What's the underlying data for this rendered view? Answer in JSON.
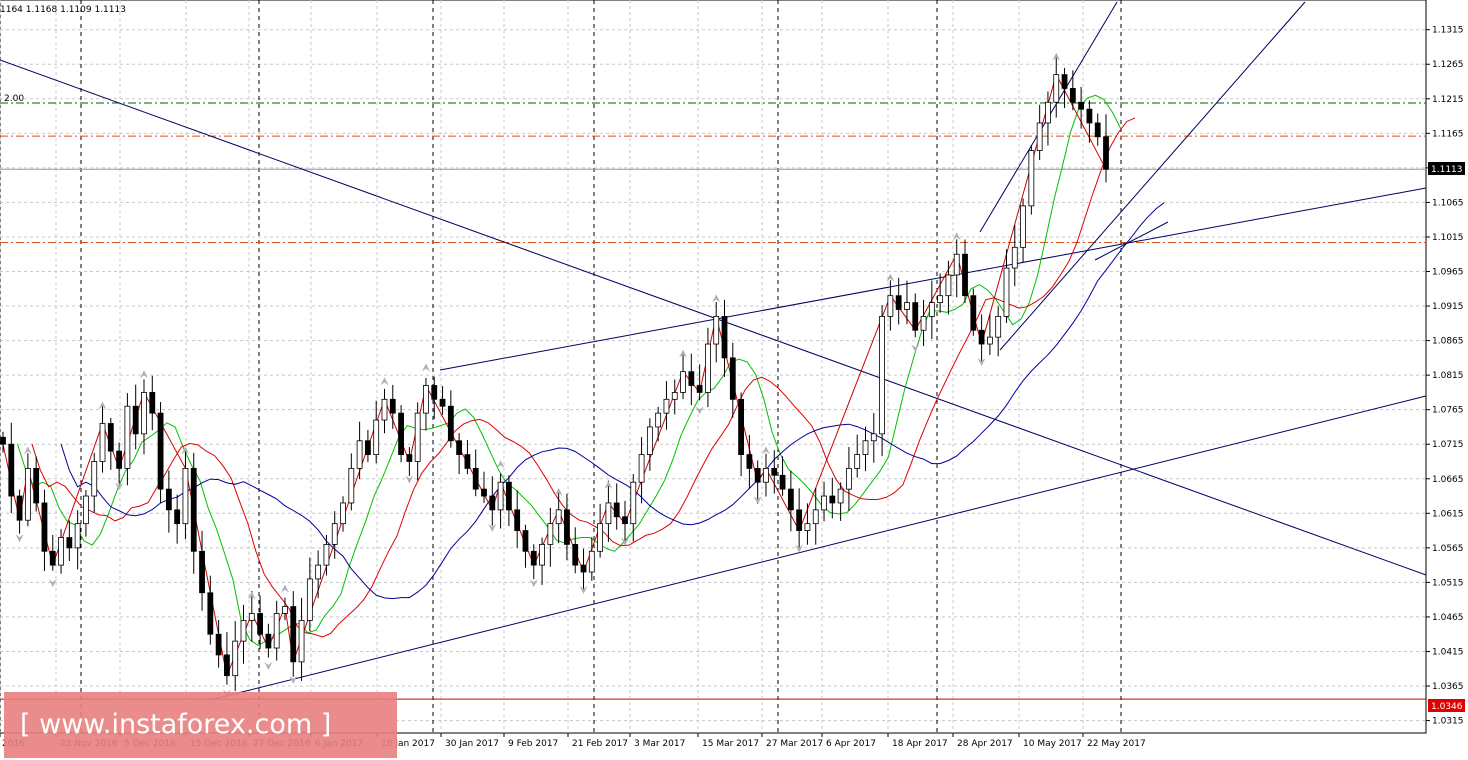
{
  "header": {
    "ohlc_text": "1164 1.1168 1.1109 1.1113",
    "level_label": "2.00"
  },
  "watermark": {
    "text": "[ www.instaforex.com ]"
  },
  "colors": {
    "candle_up": "#ffffff",
    "candle_down": "#000000",
    "ma_fast": "#00c000",
    "ma_mid": "#e00000",
    "ma_slow": "#000099",
    "zigzag": "#cc0000",
    "trendline": "#000060",
    "level_orange": "#e05010",
    "level_green": "#006000",
    "support_line": "#cc0000",
    "watermark_bg": "#e98080"
  },
  "chart_data": {
    "type": "candlestick",
    "title": "",
    "x_tick_labels": [
      "2016",
      "23 Nov 2016",
      "5 Dec 2016",
      "15 Dec 2016",
      "27 Dec 2016",
      "6 Jan 2017",
      "18 Jan 2017",
      "30 Jan 2017",
      "9 Feb 2017",
      "21 Feb 2017",
      "3 Mar 2017",
      "15 Mar 2017",
      "27 Mar 2017",
      "6 Apr 2017",
      "18 Apr 2017",
      "28 Apr 2017",
      "10 May 2017",
      "22 May 2017"
    ],
    "y_tick_labels": [
      "1.0315",
      "1.0365",
      "1.0415",
      "1.0465",
      "1.0515",
      "1.0565",
      "1.0615",
      "1.0665",
      "1.0715",
      "1.0765",
      "1.0815",
      "1.0865",
      "1.0915",
      "1.0965",
      "1.1015",
      "1.1065",
      "1.1115",
      "1.1165",
      "1.1215",
      "1.1265",
      "1.1315"
    ],
    "ylim": [
      1.0297,
      1.1358
    ],
    "current_price": "1.1113",
    "support_price": "1.0346",
    "horizontal_levels": [
      1.1209,
      1.1161,
      1.1007
    ],
    "closes": [
      1.0715,
      1.064,
      1.0605,
      1.068,
      1.063,
      1.056,
      1.054,
      1.058,
      1.0565,
      1.06,
      1.064,
      1.069,
      1.0745,
      1.0705,
      1.068,
      1.077,
      1.073,
      1.079,
      1.076,
      1.065,
      1.062,
      1.06,
      1.068,
      1.056,
      1.05,
      1.044,
      1.041,
      1.038,
      1.043,
      1.046,
      1.047,
      1.044,
      1.042,
      1.047,
      1.048,
      1.04,
      1.046,
      1.052,
      1.054,
      1.057,
      1.06,
      1.063,
      1.068,
      1.072,
      1.07,
      1.075,
      1.078,
      1.076,
      1.07,
      1.069,
      1.076,
      1.08,
      1.078,
      1.077,
      1.072,
      1.07,
      1.068,
      1.065,
      1.064,
      1.062,
      1.066,
      1.062,
      1.059,
      1.056,
      1.054,
      1.057,
      1.06,
      1.062,
      1.057,
      1.054,
      1.053,
      1.056,
      1.06,
      1.063,
      1.061,
      1.06,
      1.066,
      1.07,
      1.074,
      1.076,
      1.078,
      1.079,
      1.082,
      1.08,
      1.079,
      1.086,
      1.09,
      1.084,
      1.078,
      1.07,
      1.068,
      1.066,
      1.068,
      1.067,
      1.065,
      1.062,
      1.059,
      1.06,
      1.062,
      1.064,
      1.063,
      1.065,
      1.068,
      1.07,
      1.072,
      1.073,
      1.09,
      1.093,
      1.091,
      1.092,
      1.088,
      1.09,
      1.092,
      1.093,
      1.096,
      1.099,
      1.093,
      1.088,
      1.086,
      1.087,
      1.09,
      1.097,
      1.1,
      1.106,
      1.114,
      1.118,
      1.121,
      1.125,
      1.123,
      1.121,
      1.12,
      1.118,
      1.116,
      1.1113
    ],
    "indicators": [
      "moving average fast",
      "moving average mid",
      "moving average slow",
      "zigzag",
      "fractals"
    ]
  }
}
